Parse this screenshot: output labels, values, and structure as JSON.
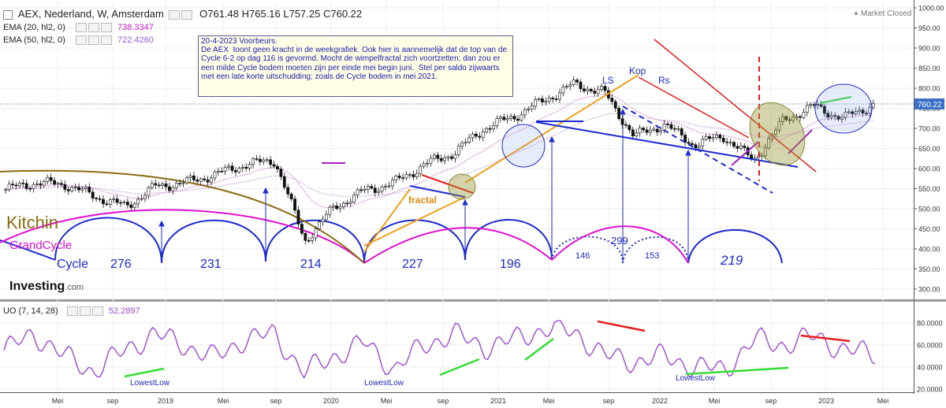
{
  "header": {
    "main_title": "AEX, Nederland, W, Amsterdam",
    "ohlc": "O761.48 H765.16 L757.25 C760.22",
    "ema20_label": "EMA (20, hl2, 0)",
    "ema20_value": "738.3347",
    "ema50_label": "EMA (50, hl2, 0)",
    "ema50_value": "722.4260",
    "market_status": "Market Closed",
    "uo_label": "UO (7, 14, 28)",
    "uo_value": "52.2897"
  },
  "colors": {
    "price": "#111111",
    "ema20": "#d01bd0",
    "ema50": "#9b5cf0",
    "uo_line": "#a24ad8",
    "note_text": "#1a1ab8",
    "cycle_blue": "#1c2bd0",
    "grand_magenta": "#e010d0",
    "kitchin_brown": "#8a6a10",
    "channel_red": "#e62020",
    "trend_orange": "#f0a020",
    "uptrend_green": "#33dd33",
    "last_price_tag": "#3a6fc8"
  },
  "note": {
    "text": "20-4-2023 Voorbeurs.\nDe AEX  toont geen kracht in de weekgrafiek. Ook hier is aannemelijk dat de top van de Cycle 6-2 op dag 116 is gevormd. Mocht de wimpelfractal zich voortzetten; dan zou er een milde Cycle bodem moeten zijn per einde mei begin juni.  Stel per saldo zijwaarts met een late korte uitschudding; zoals de Cycle bodem in mei 2021."
  },
  "annotations": {
    "kitchin": "Kitchin",
    "grandcycle": "GrandCycle",
    "cycle": "Cycle",
    "cycle_counts": [
      "276",
      "231",
      "214",
      "227",
      "196",
      "299",
      "219"
    ],
    "sub_counts": [
      "146",
      "153"
    ],
    "fractal": "fractal",
    "ls": "LS",
    "kop": "Kop",
    "rs": "Rs",
    "lowest_low": [
      "LowestLow",
      "LowestLow",
      "LowestLow"
    ],
    "logo": "Investing",
    "logo_suffix": ".com"
  },
  "price_axis": {
    "ticks": [
      "1000.00",
      "950.00",
      "900.00",
      "850.00",
      "800.00",
      "750.00",
      "700.00",
      "650.00",
      "600.00",
      "550.00",
      "500.00",
      "450.00",
      "400.00",
      "350.00",
      "300.00"
    ],
    "last_price": "760.22"
  },
  "uo_axis": {
    "ticks": [
      "80.0000",
      "60.0000",
      "40.0000",
      "20.0000"
    ]
  },
  "time_axis": {
    "labels": [
      "Mei",
      "sep",
      "2019",
      "Mei",
      "sep",
      "2020",
      "Mei",
      "sep",
      "2021",
      "Mei",
      "sep",
      "2022",
      "Mei",
      "sep",
      "2023",
      "Mei"
    ]
  },
  "chart_data": {
    "type": "line",
    "title": "AEX, Nederland, W, Amsterdam",
    "xlabel": "",
    "ylabel": "",
    "ylim": [
      280,
      1010
    ],
    "x": [
      "2018-02",
      "2018-05",
      "2018-08",
      "2018-11",
      "2019-01",
      "2019-04",
      "2019-07",
      "2019-10",
      "2020-01",
      "2020-02",
      "2020-03",
      "2020-05",
      "2020-07",
      "2020-09",
      "2020-11",
      "2021-01",
      "2021-04",
      "2021-06",
      "2021-08",
      "2021-11",
      "2022-01",
      "2022-03",
      "2022-05",
      "2022-07",
      "2022-09",
      "2022-10",
      "2022-12",
      "2023-02",
      "2023-03",
      "2023-04"
    ],
    "series": [
      {
        "values": [
          548,
          565,
          560,
          530,
          505,
          555,
          565,
          585,
          610,
          620,
          420,
          505,
          545,
          565,
          610,
          640,
          700,
          730,
          770,
          810,
          790,
          680,
          710,
          660,
          680,
          620,
          720,
          755,
          725,
          760
        ]
      }
    ],
    "indicator": {
      "name": "UO (7, 14, 28)",
      "ylim": [
        18,
        88
      ],
      "values": [
        55,
        70,
        50,
        36,
        55,
        70,
        60,
        48,
        65,
        70,
        35,
        50,
        62,
        38,
        60,
        70,
        58,
        65,
        75,
        72,
        50,
        45,
        50,
        40,
        38,
        65,
        60,
        68,
        55,
        52
      ]
    },
    "grid": true,
    "legend": "top-left"
  }
}
